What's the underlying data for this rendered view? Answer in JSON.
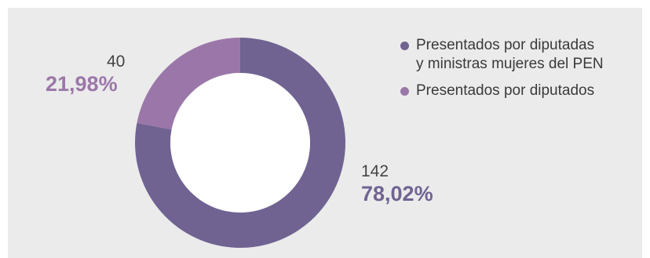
{
  "chart_data": {
    "type": "pie",
    "style": "donut",
    "slices": [
      {
        "label": "Presentados por diputadas\ny ministras mujeres del PEN",
        "count": 142,
        "count_label": "142",
        "percent": 78.02,
        "percent_label": "78,02%",
        "color": "#706392"
      },
      {
        "label": "Presentados por diputados",
        "count": 40,
        "count_label": "40",
        "percent": 21.98,
        "percent_label": "21,98%",
        "color": "#9b77a9"
      }
    ],
    "legend_position": "top-right"
  },
  "colors": {
    "panel_background": "#ebebeb",
    "count_text": "#444444",
    "legend_text": "#3a3a3a",
    "hole": "#ffffff"
  }
}
